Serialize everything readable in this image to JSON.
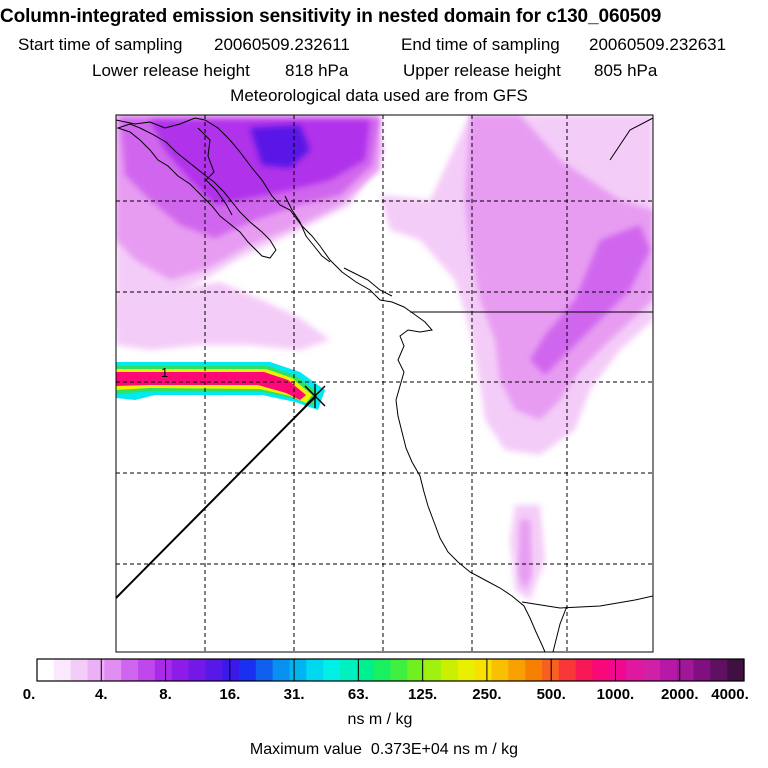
{
  "header": {
    "title": "Column-integrated emission sensitivity in nested domain for c130_060509",
    "start_label": "Start time of sampling",
    "start_value": "20060509.232611",
    "end_label": "End time of sampling",
    "end_value": "20060509.232631",
    "lower_label": "Lower release height",
    "lower_value": "818 hPa",
    "upper_label": "Upper release height",
    "upper_value": "805 hPa",
    "met_source": "Meteorological data used are from GFS"
  },
  "map": {
    "release_marker_label": "1",
    "colors": {
      "light_pink": "#f4ccf8",
      "pink": "#e79cf2",
      "magenta": "#d066ee",
      "purple": "#b030ea",
      "deep_purple": "#8418e6",
      "blue_violet": "#5a18e6",
      "hot_pink": "#ff0878",
      "red": "#ff1a3c",
      "cyan": "#00e8f0",
      "green": "#30e060",
      "yellow": "#f0f000"
    }
  },
  "colorbar": {
    "ticks": [
      "0.",
      "4.",
      "8.",
      "16.",
      "31.",
      "63.",
      "125.",
      "250.",
      "500.",
      "1000.",
      "2000.",
      "4000."
    ],
    "colors": [
      "#ffffff",
      "#fbe8fc",
      "#f4ccf8",
      "#ecb0f6",
      "#e08ef2",
      "#d066ee",
      "#bf47eb",
      "#aa2ae9",
      "#8e1ce8",
      "#7418e8",
      "#5818e8",
      "#3c18ea",
      "#1a30f0",
      "#1060f0",
      "#0890f0",
      "#00b4f0",
      "#00d8f0",
      "#00f0e8",
      "#00f0c0",
      "#00f090",
      "#18f060",
      "#40f040",
      "#70f020",
      "#a0f010",
      "#c8f000",
      "#e8f000",
      "#f8e000",
      "#f8c000",
      "#f8a000",
      "#f88000",
      "#f86020",
      "#f83838",
      "#f81858",
      "#f80878",
      "#f00890",
      "#e018a0",
      "#d020a8",
      "#b818a8",
      "#a01898",
      "#801080",
      "#601060",
      "#401040"
    ],
    "units": "ns m / kg"
  },
  "footer": {
    "maximum_label": "Maximum value",
    "maximum_value": "0.373E+04",
    "maximum_units": "ns m / kg"
  }
}
